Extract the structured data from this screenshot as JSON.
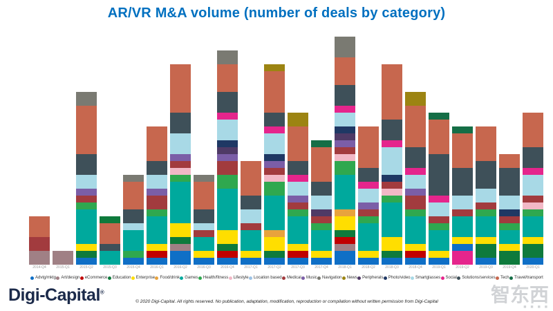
{
  "title": "AR/VR M&A volume (number of deals by category)",
  "footer": {
    "brand": "Digi-Capital",
    "brand_reg": "®",
    "copyright": "© 2020 Digi-Capital. All rights reserved. No publication, adaptation, modification, reproduction or compilation without written permission from Digi-Capital",
    "watermark": "智东西",
    "watermark_dots": "■ ■ ■ ■"
  },
  "chart_data": {
    "type": "bar",
    "stacked": true,
    "title": "AR/VR M&A volume (number of deals by category)",
    "unit": "deals",
    "ylim": [
      0,
      33
    ],
    "grid": false,
    "legend_position": "bottom",
    "categories": [
      {
        "name": "Advtg/mktg",
        "color": "#0F6FC6"
      },
      {
        "name": "Art/design",
        "color": "#A08085"
      },
      {
        "name": "eCommerce",
        "color": "#C00000"
      },
      {
        "name": "Education",
        "color": "#0E7A3C"
      },
      {
        "name": "Enterprise",
        "color": "#FFDE00"
      },
      {
        "name": "Food/drink",
        "color": "#E8A33D"
      },
      {
        "name": "Games",
        "color": "#00A99D"
      },
      {
        "name": "Health/fitness",
        "color": "#2FA84F"
      },
      {
        "name": "Lifestyle",
        "color": "#F2B8C6"
      },
      {
        "name": "Location based",
        "color": "#9DC3E6"
      },
      {
        "name": "Medical",
        "color": "#A23B3E"
      },
      {
        "name": "Music",
        "color": "#7B5EA7"
      },
      {
        "name": "Navigation",
        "color": "#7A7A72"
      },
      {
        "name": "News",
        "color": "#9C8412"
      },
      {
        "name": "Peripherals",
        "color": "#4F3A66"
      },
      {
        "name": "Photo/video",
        "color": "#1F3864"
      },
      {
        "name": "Smartglasses",
        "color": "#A8D9E6"
      },
      {
        "name": "Social",
        "color": "#E5258C"
      },
      {
        "name": "Solutions/services",
        "color": "#3E5059"
      },
      {
        "name": "Tech",
        "color": "#C7674E"
      },
      {
        "name": "Travel/transport",
        "color": "#156E46"
      }
    ],
    "bars": [
      {
        "quarter": "2014-Q4",
        "total": 7,
        "segments": [
          [
            "Art/design",
            2
          ],
          [
            "Medical",
            2
          ],
          [
            "Tech",
            3
          ]
        ]
      },
      {
        "quarter": "2015-Q1",
        "total": 2,
        "segments": [
          [
            "Art/design",
            2
          ]
        ]
      },
      {
        "quarter": "2015-Q2",
        "total": 25,
        "segments": [
          [
            "Advtg/mktg",
            1
          ],
          [
            "Education",
            1
          ],
          [
            "Enterprise",
            1
          ],
          [
            "Games",
            5
          ],
          [
            "Health/fitness",
            1
          ],
          [
            "Medical",
            1
          ],
          [
            "Music",
            1
          ],
          [
            "Smartglasses",
            2
          ],
          [
            "Solutions/services",
            3
          ],
          [
            "Tech",
            7
          ],
          [
            "Navigation",
            2
          ]
        ]
      },
      {
        "quarter": "2015-Q3",
        "total": 7,
        "segments": [
          [
            "Games",
            2
          ],
          [
            "Solutions/services",
            1
          ],
          [
            "Tech",
            3
          ],
          [
            "Education",
            1
          ]
        ]
      },
      {
        "quarter": "2015-Q4",
        "total": 13,
        "segments": [
          [
            "Advtg/mktg",
            1
          ],
          [
            "Health/fitness",
            1
          ],
          [
            "Games",
            3
          ],
          [
            "Smartglasses",
            1
          ],
          [
            "Solutions/services",
            2
          ],
          [
            "Tech",
            4
          ],
          [
            "Navigation",
            1
          ]
        ]
      },
      {
        "quarter": "2016-Q1",
        "total": 20,
        "segments": [
          [
            "Advtg/mktg",
            1
          ],
          [
            "eCommerce",
            1
          ],
          [
            "Enterprise",
            1
          ],
          [
            "Games",
            4
          ],
          [
            "Health/fitness",
            1
          ],
          [
            "Medical",
            2
          ],
          [
            "Music",
            1
          ],
          [
            "Smartglasses",
            2
          ],
          [
            "Solutions/services",
            2
          ],
          [
            "Tech",
            5
          ]
        ]
      },
      {
        "quarter": "2016-Q2",
        "total": 29,
        "segments": [
          [
            "Advtg/mktg",
            2
          ],
          [
            "Art/design",
            1
          ],
          [
            "Education",
            1
          ],
          [
            "Enterprise",
            2
          ],
          [
            "Games",
            6
          ],
          [
            "Health/fitness",
            1
          ],
          [
            "Lifestyle",
            1
          ],
          [
            "Medical",
            1
          ],
          [
            "Music",
            1
          ],
          [
            "Smartglasses",
            3
          ],
          [
            "Solutions/services",
            3
          ],
          [
            "Tech",
            7
          ]
        ]
      },
      {
        "quarter": "2016-Q3",
        "total": 13,
        "segments": [
          [
            "Advtg/mktg",
            1
          ],
          [
            "Enterprise",
            1
          ],
          [
            "Games",
            2
          ],
          [
            "Medical",
            1
          ],
          [
            "Smartglasses",
            1
          ],
          [
            "Solutions/services",
            2
          ],
          [
            "Tech",
            4
          ],
          [
            "Navigation",
            1
          ]
        ]
      },
      {
        "quarter": "2016-Q4",
        "total": 31,
        "segments": [
          [
            "Advtg/mktg",
            1
          ],
          [
            "eCommerce",
            1
          ],
          [
            "Education",
            1
          ],
          [
            "Enterprise",
            2
          ],
          [
            "Games",
            6
          ],
          [
            "Health/fitness",
            2
          ],
          [
            "Medical",
            2
          ],
          [
            "Music",
            1
          ],
          [
            "Peripherals",
            1
          ],
          [
            "Photo/video",
            1
          ],
          [
            "Smartglasses",
            3
          ],
          [
            "Social",
            1
          ],
          [
            "Solutions/services",
            3
          ],
          [
            "Tech",
            4
          ],
          [
            "Navigation",
            2
          ]
        ]
      },
      {
        "quarter": "2017-Q1",
        "total": 15,
        "segments": [
          [
            "Advtg/mktg",
            1
          ],
          [
            "Enterprise",
            1
          ],
          [
            "Games",
            3
          ],
          [
            "Medical",
            1
          ],
          [
            "Smartglasses",
            2
          ],
          [
            "Solutions/services",
            2
          ],
          [
            "Tech",
            5
          ]
        ]
      },
      {
        "quarter": "2017-Q2",
        "total": 29,
        "segments": [
          [
            "Advtg/mktg",
            1
          ],
          [
            "Education",
            1
          ],
          [
            "Enterprise",
            2
          ],
          [
            "Food/drink",
            1
          ],
          [
            "Games",
            5
          ],
          [
            "Health/fitness",
            2
          ],
          [
            "Lifestyle",
            1
          ],
          [
            "Medical",
            1
          ],
          [
            "Music",
            1
          ],
          [
            "Photo/video",
            1
          ],
          [
            "Smartglasses",
            3
          ],
          [
            "Social",
            1
          ],
          [
            "Solutions/services",
            2
          ],
          [
            "Tech",
            6
          ],
          [
            "News",
            1
          ]
        ]
      },
      {
        "quarter": "2017-Q3",
        "total": 22,
        "segments": [
          [
            "Advtg/mktg",
            1
          ],
          [
            "eCommerce",
            1
          ],
          [
            "Enterprise",
            1
          ],
          [
            "Games",
            4
          ],
          [
            "Health/fitness",
            1
          ],
          [
            "Medical",
            1
          ],
          [
            "Music",
            1
          ],
          [
            "Smartglasses",
            2
          ],
          [
            "Social",
            1
          ],
          [
            "Solutions/services",
            2
          ],
          [
            "Tech",
            5
          ],
          [
            "News",
            2
          ]
        ]
      },
      {
        "quarter": "2017-Q4",
        "total": 18,
        "segments": [
          [
            "Advtg/mktg",
            1
          ],
          [
            "Enterprise",
            1
          ],
          [
            "Games",
            3
          ],
          [
            "Health/fitness",
            1
          ],
          [
            "Medical",
            1
          ],
          [
            "Peripherals",
            1
          ],
          [
            "Smartglasses",
            2
          ],
          [
            "Solutions/services",
            2
          ],
          [
            "Tech",
            5
          ],
          [
            "Travel/transport",
            1
          ]
        ]
      },
      {
        "quarter": "2018-Q1",
        "total": 33,
        "segments": [
          [
            "Advtg/mktg",
            2
          ],
          [
            "Art/design",
            1
          ],
          [
            "eCommerce",
            1
          ],
          [
            "Education",
            1
          ],
          [
            "Enterprise",
            2
          ],
          [
            "Food/drink",
            1
          ],
          [
            "Games",
            5
          ],
          [
            "Health/fitness",
            2
          ],
          [
            "Lifestyle",
            1
          ],
          [
            "Medical",
            1
          ],
          [
            "Music",
            1
          ],
          [
            "Peripherals",
            1
          ],
          [
            "Photo/video",
            1
          ],
          [
            "Smartglasses",
            2
          ],
          [
            "Social",
            1
          ],
          [
            "Solutions/services",
            3
          ],
          [
            "Tech",
            4
          ],
          [
            "Navigation",
            3
          ]
        ]
      },
      {
        "quarter": "2018-Q2",
        "total": 20,
        "segments": [
          [
            "Advtg/mktg",
            1
          ],
          [
            "Enterprise",
            1
          ],
          [
            "Games",
            4
          ],
          [
            "Health/fitness",
            1
          ],
          [
            "Medical",
            1
          ],
          [
            "Music",
            1
          ],
          [
            "Smartglasses",
            2
          ],
          [
            "Social",
            1
          ],
          [
            "Solutions/services",
            2
          ],
          [
            "Tech",
            6
          ]
        ]
      },
      {
        "quarter": "2018-Q3",
        "total": 29,
        "segments": [
          [
            "Advtg/mktg",
            1
          ],
          [
            "Education",
            1
          ],
          [
            "Enterprise",
            2
          ],
          [
            "Games",
            5
          ],
          [
            "Health/fitness",
            1
          ],
          [
            "Lifestyle",
            1
          ],
          [
            "Medical",
            1
          ],
          [
            "Photo/video",
            1
          ],
          [
            "Smartglasses",
            4
          ],
          [
            "Social",
            1
          ],
          [
            "Solutions/services",
            3
          ],
          [
            "Tech",
            8
          ]
        ]
      },
      {
        "quarter": "2018-Q4",
        "total": 25,
        "segments": [
          [
            "Advtg/mktg",
            1
          ],
          [
            "eCommerce",
            1
          ],
          [
            "Enterprise",
            1
          ],
          [
            "Games",
            4
          ],
          [
            "Health/fitness",
            1
          ],
          [
            "Medical",
            2
          ],
          [
            "Music",
            1
          ],
          [
            "Smartglasses",
            2
          ],
          [
            "Social",
            1
          ],
          [
            "Solutions/services",
            3
          ],
          [
            "Tech",
            6
          ],
          [
            "News",
            2
          ]
        ]
      },
      {
        "quarter": "2019-Q1",
        "total": 22,
        "segments": [
          [
            "Advtg/mktg",
            1
          ],
          [
            "Enterprise",
            1
          ],
          [
            "Games",
            3
          ],
          [
            "Health/fitness",
            1
          ],
          [
            "Medical",
            1
          ],
          [
            "Smartglasses",
            2
          ],
          [
            "Social",
            1
          ],
          [
            "Solutions/services",
            6
          ],
          [
            "Tech",
            5
          ],
          [
            "Travel/transport",
            1
          ]
        ]
      },
      {
        "quarter": "2019-Q2",
        "total": 20,
        "segments": [
          [
            "Social",
            2
          ],
          [
            "Advtg/mktg",
            1
          ],
          [
            "Enterprise",
            1
          ],
          [
            "Games",
            3
          ],
          [
            "Medical",
            1
          ],
          [
            "Smartglasses",
            2
          ],
          [
            "Solutions/services",
            4
          ],
          [
            "Tech",
            5
          ],
          [
            "Travel/transport",
            1
          ]
        ]
      },
      {
        "quarter": "2019-Q3",
        "total": 20,
        "segments": [
          [
            "Advtg/mktg",
            1
          ],
          [
            "Education",
            2
          ],
          [
            "Enterprise",
            1
          ],
          [
            "Games",
            3
          ],
          [
            "Health/fitness",
            1
          ],
          [
            "Medical",
            1
          ],
          [
            "Smartglasses",
            2
          ],
          [
            "Solutions/services",
            4
          ],
          [
            "Tech",
            5
          ]
        ]
      },
      {
        "quarter": "2019-Q4",
        "total": 16,
        "segments": [
          [
            "Education",
            2
          ],
          [
            "Enterprise",
            1
          ],
          [
            "Games",
            2
          ],
          [
            "Health/fitness",
            1
          ],
          [
            "Medical",
            1
          ],
          [
            "Photo/video",
            1
          ],
          [
            "Smartglasses",
            2
          ],
          [
            "Solutions/services",
            4
          ],
          [
            "Tech",
            2
          ]
        ]
      },
      {
        "quarter": "2020-Q1",
        "total": 22,
        "segments": [
          [
            "Advtg/mktg",
            1
          ],
          [
            "Education",
            2
          ],
          [
            "Enterprise",
            1
          ],
          [
            "Games",
            3
          ],
          [
            "Health/fitness",
            1
          ],
          [
            "Lifestyle",
            1
          ],
          [
            "Medical",
            1
          ],
          [
            "Smartglasses",
            3
          ],
          [
            "Social",
            1
          ],
          [
            "Solutions/services",
            3
          ],
          [
            "Tech",
            5
          ]
        ]
      }
    ]
  }
}
